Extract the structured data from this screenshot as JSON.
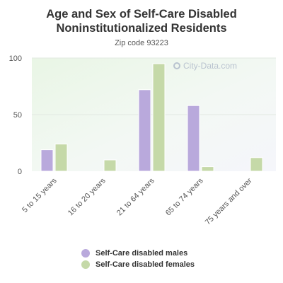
{
  "title": "Age and Sex of Self-Care Disabled Noninstitutionalized Residents",
  "subtitle": "Zip code 93223",
  "watermark": "City-Data.com",
  "colors": {
    "males": "#b9a9dc",
    "females": "#c5d9a8",
    "plot_bg_top": "#f0f8f4",
    "plot_bg_bottom": "#e0f5d8"
  },
  "chart_data": {
    "type": "bar",
    "title": "Age and Sex of Self-Care Disabled Noninstitutionalized Residents",
    "subtitle": "Zip code 93223",
    "categories": [
      "5 to 15 years",
      "16 to 20 years",
      "21 to 64 years",
      "65 to 74 years",
      "75 years and over"
    ],
    "series": [
      {
        "name": "Self-Care disabled males",
        "values": [
          19,
          0,
          72,
          58,
          0
        ]
      },
      {
        "name": "Self-Care disabled females",
        "values": [
          24,
          10,
          95,
          4,
          12
        ]
      }
    ],
    "ylim": [
      0,
      100
    ],
    "yticks": [
      0,
      50,
      100
    ],
    "xlabel": "",
    "ylabel": "",
    "legend": "bottom"
  }
}
